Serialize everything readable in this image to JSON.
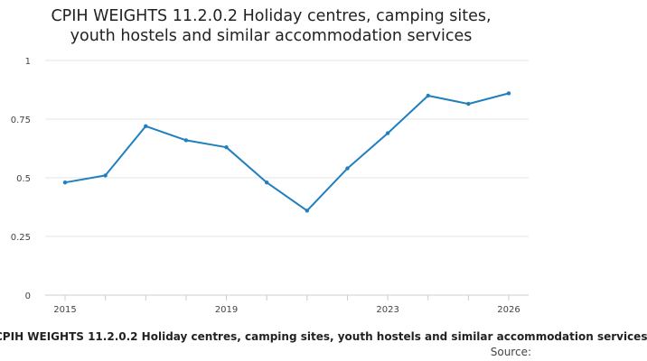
{
  "chart_data": {
    "type": "line",
    "title_line1": "CPIH WEIGHTS 11.2.0.2 Holiday centres, camping sites,",
    "title_line2": "youth hostels and similar accommodation services",
    "xlabel": "CPIH WEIGHTS 11.2.0.2 Holiday centres, camping sites, youth hostels and similar accommodation services",
    "ylabel": "",
    "source_label": "Source:",
    "x": [
      2015,
      2016,
      2017,
      2018,
      2019,
      2020,
      2021,
      2022,
      2023,
      2024,
      2025,
      2026
    ],
    "series": [
      {
        "name": "",
        "color": "#1f7fbf",
        "values": [
          0.48,
          0.51,
          0.72,
          0.66,
          0.63,
          0.48,
          0.36,
          0.54,
          0.69,
          0.85,
          0.815,
          0.86
        ]
      }
    ],
    "xlim": [
      2015,
      2026
    ],
    "ylim": [
      0,
      1
    ],
    "y_ticks": [
      "0",
      "0.25",
      "0.5",
      "0.75",
      "1"
    ],
    "x_ticks": [
      "2015",
      "2019",
      "2023",
      "2026"
    ],
    "grid": true,
    "colors": {
      "line": "#1f7fbf",
      "grid": "#e6e6e6",
      "axis": "#cccccc"
    }
  }
}
